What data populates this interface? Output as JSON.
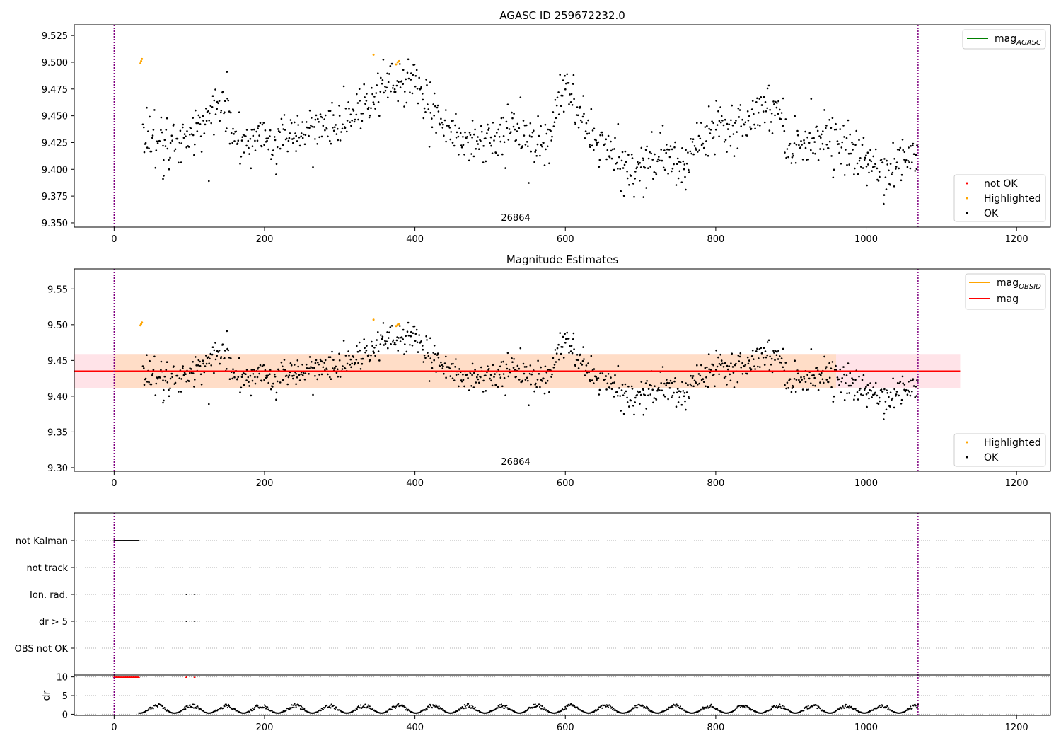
{
  "colors": {
    "ok": "#000000",
    "highlighted": "#ffa500",
    "not_ok": "#ff0000",
    "mag_agasc_line": "#008000",
    "mag_obsid_line": "#ffa500",
    "mag_line": "#ff0000",
    "mag_band": "#ffc0cb",
    "obsid_band": "#ffdab9",
    "obsid_vline": "#800080",
    "grid": "#b0b0b0"
  },
  "chart_data": [
    {
      "type": "scatter",
      "title": "AGASC ID 259672232.0",
      "xlim": [
        -53,
        1245
      ],
      "ylim": [
        9.346,
        9.535
      ],
      "xticks": [
        0,
        200,
        400,
        600,
        800,
        1000,
        1200
      ],
      "yticks": [
        9.35,
        9.375,
        9.4,
        9.425,
        9.45,
        9.475,
        9.5,
        9.525
      ],
      "ytick_labels": [
        "9.350",
        "9.375",
        "9.400",
        "9.425",
        "9.450",
        "9.475",
        "9.500",
        "9.525"
      ],
      "obsid_boundaries": [
        0,
        1069
      ],
      "obsid_label": {
        "text": "26864",
        "x": 534
      },
      "line_legend": [
        {
          "label_main": "mag",
          "label_sub": "AGASC",
          "color_key": "mag_agasc_line"
        }
      ],
      "marker_legend": [
        {
          "label": "not OK",
          "color_key": "not_ok"
        },
        {
          "label": "Highlighted",
          "color_key": "highlighted"
        },
        {
          "label": "OK",
          "color_key": "ok"
        }
      ],
      "anchors": [
        [
          35,
          9.432
        ],
        [
          60,
          9.425
        ],
        [
          75,
          9.43
        ],
        [
          90,
          9.425
        ],
        [
          110,
          9.437
        ],
        [
          125,
          9.445
        ],
        [
          145,
          9.465
        ],
        [
          160,
          9.435
        ],
        [
          175,
          9.425
        ],
        [
          200,
          9.43
        ],
        [
          215,
          9.42
        ],
        [
          225,
          9.44
        ],
        [
          250,
          9.43
        ],
        [
          275,
          9.44
        ],
        [
          300,
          9.44
        ],
        [
          320,
          9.455
        ],
        [
          345,
          9.47
        ],
        [
          360,
          9.485
        ],
        [
          380,
          9.48
        ],
        [
          400,
          9.48
        ],
        [
          415,
          9.455
        ],
        [
          440,
          9.45
        ],
        [
          460,
          9.425
        ],
        [
          480,
          9.428
        ],
        [
          500,
          9.43
        ],
        [
          520,
          9.432
        ],
        [
          540,
          9.44
        ],
        [
          560,
          9.42
        ],
        [
          580,
          9.425
        ],
        [
          590,
          9.47
        ],
        [
          605,
          9.47
        ],
        [
          620,
          9.445
        ],
        [
          640,
          9.43
        ],
        [
          665,
          9.41
        ],
        [
          680,
          9.4
        ],
        [
          700,
          9.405
        ],
        [
          720,
          9.412
        ],
        [
          740,
          9.41
        ],
        [
          755,
          9.4
        ],
        [
          770,
          9.42
        ],
        [
          790,
          9.44
        ],
        [
          810,
          9.445
        ],
        [
          830,
          9.44
        ],
        [
          850,
          9.455
        ],
        [
          870,
          9.46
        ],
        [
          885,
          9.455
        ],
        [
          900,
          9.42
        ],
        [
          920,
          9.425
        ],
        [
          940,
          9.435
        ],
        [
          960,
          9.425
        ],
        [
          980,
          9.415
        ],
        [
          1000,
          9.41
        ],
        [
          1020,
          9.4
        ],
        [
          1040,
          9.405
        ],
        [
          1060,
          9.41
        ],
        [
          1069,
          9.413
        ]
      ],
      "highlighted_points": [
        [
          35,
          9.499
        ],
        [
          36,
          9.501
        ],
        [
          37,
          9.503
        ],
        [
          345,
          9.507
        ],
        [
          375,
          9.498
        ],
        [
          377,
          9.5
        ],
        [
          379,
          9.501
        ]
      ],
      "outliers": [
        [
          126,
          9.389
        ],
        [
          65,
          9.391
        ],
        [
          66,
          9.394
        ],
        [
          704,
          9.374
        ],
        [
          1001,
          9.385
        ],
        [
          1024,
          9.376
        ],
        [
          611,
          9.488
        ],
        [
          150,
          9.491
        ],
        [
          242,
          9.417
        ],
        [
          760,
          9.381
        ]
      ],
      "point_count": 1000,
      "noise": 0.011
    },
    {
      "type": "scatter",
      "title": "Magnitude Estimates",
      "xlim": [
        -53,
        1245
      ],
      "ylim": [
        9.295,
        9.578
      ],
      "xticks": [
        0,
        200,
        400,
        600,
        800,
        1000,
        1200
      ],
      "yticks": [
        9.3,
        9.35,
        9.4,
        9.45,
        9.5,
        9.55
      ],
      "ytick_labels": [
        "9.30",
        "9.35",
        "9.40",
        "9.45",
        "9.50",
        "9.55"
      ],
      "obsid_boundaries": [
        0,
        1069
      ],
      "obsid_label": {
        "text": "26864",
        "x": 534
      },
      "mag": 9.435,
      "mag_band": [
        9.411,
        9.459
      ],
      "mag_band_x": [
        -53,
        1125
      ],
      "mag_obsid": 9.435,
      "mag_obsid_band": [
        9.411,
        9.459
      ],
      "mag_obsid_x": [
        0,
        960
      ],
      "line_legend": [
        {
          "label_main": "mag",
          "label_sub": "OBSID",
          "color_key": "mag_obsid_line"
        },
        {
          "label_main": "mag",
          "label_sub": "",
          "color_key": "mag_line"
        }
      ],
      "marker_legend": [
        {
          "label": "Highlighted",
          "color_key": "highlighted"
        },
        {
          "label": "OK",
          "color_key": "ok"
        }
      ]
    },
    {
      "type": "scatter",
      "title": "",
      "xlim": [
        -53,
        1245
      ],
      "xticks": [
        0,
        200,
        400,
        600,
        800,
        1000,
        1200
      ],
      "flag_rows": [
        "not Kalman",
        "not track",
        "Ion. rad.",
        "dr > 5",
        "OBS not OK"
      ],
      "flag_points": {
        "not Kalman": {
          "x_range": [
            0,
            33
          ],
          "step": 1
        },
        "not track": {
          "x_range": null,
          "step": 0
        },
        "Ion. rad.": {
          "x_values": [
            96,
            107
          ]
        },
        "dr > 5": {
          "x_values": [
            96,
            107
          ]
        },
        "OBS not OK": {
          "x_range": null,
          "step": 0
        }
      },
      "dr_ylabel": "dr",
      "dr_ylim": [
        -0.3,
        10.5
      ],
      "dr_yticks": [
        0,
        5,
        10
      ],
      "dr_clipped_value": 10,
      "dr_clipped_x": [
        0,
        33,
        96,
        107
      ],
      "dr_typical_range": [
        0.3,
        2.8
      ],
      "dr_start_x": 33,
      "dr_end_x": 1069
    }
  ]
}
